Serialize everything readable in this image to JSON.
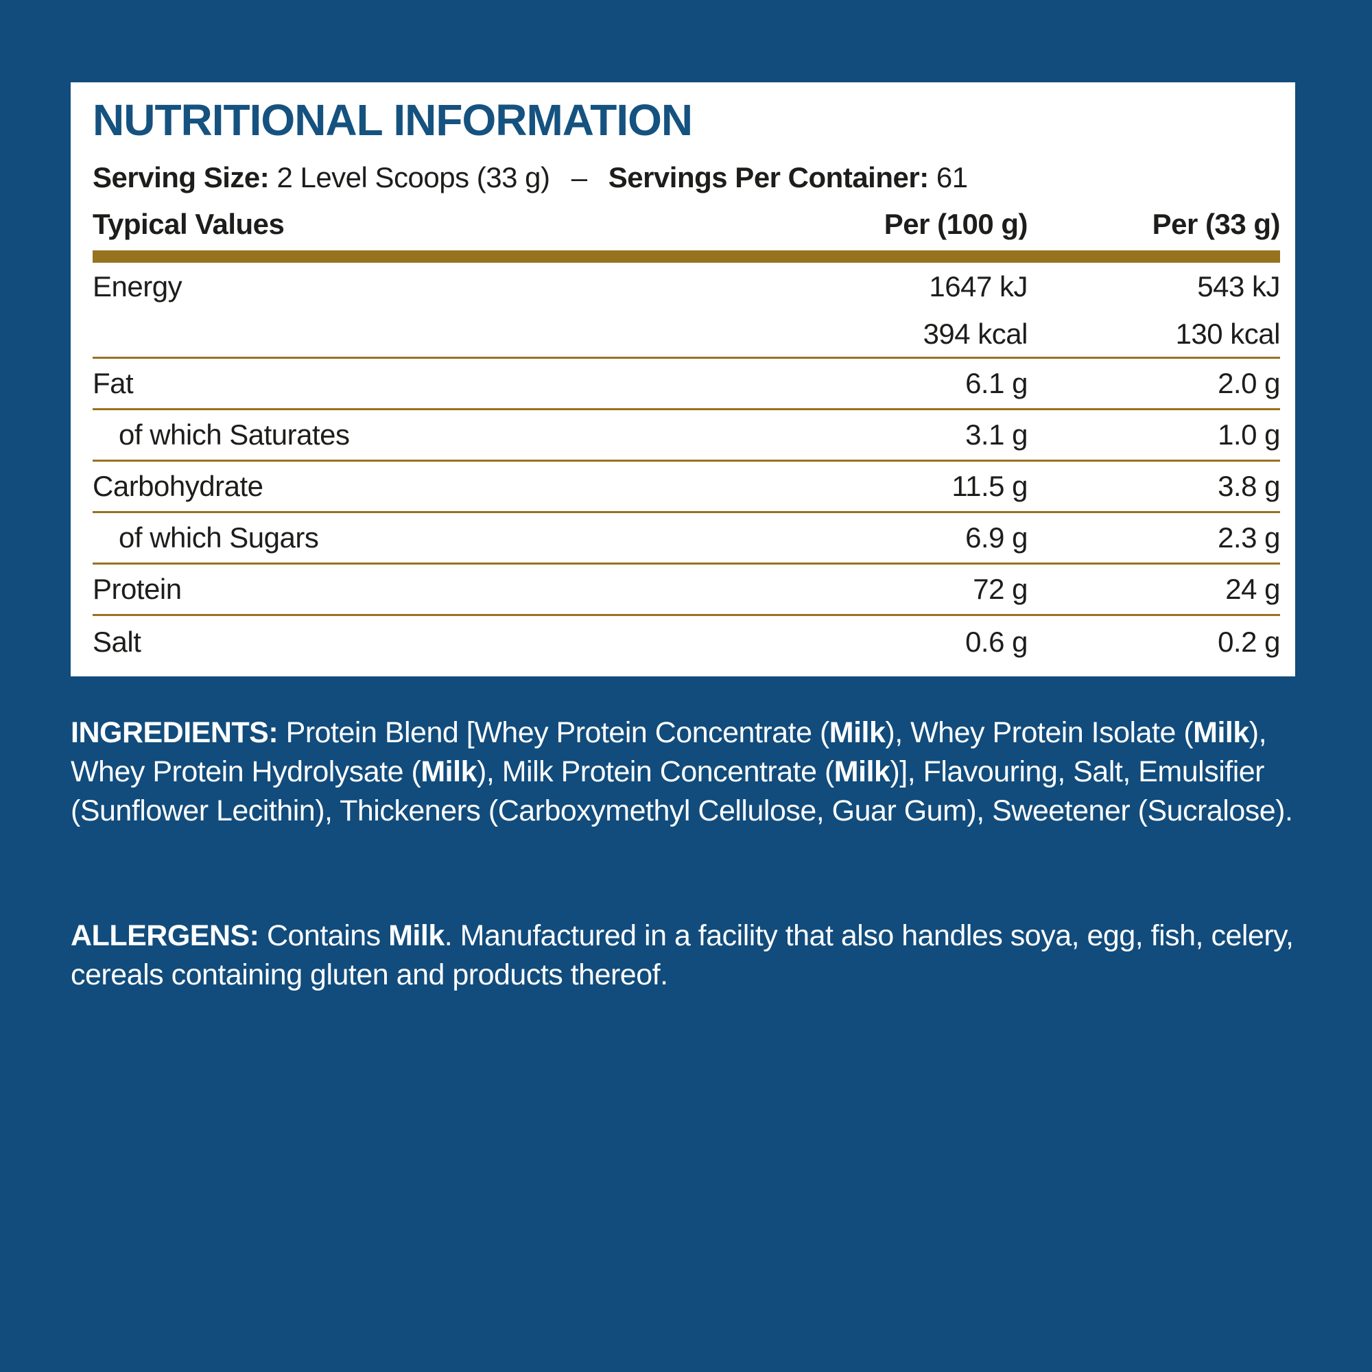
{
  "colors": {
    "navy": "#114C7C",
    "title-blue": "#15527F",
    "ink": "#1D1D1B",
    "gold": "#97721F",
    "card": "#FFFFFF",
    "white": "#FFFFFF"
  },
  "card": {
    "title": "NUTRITIONAL INFORMATION",
    "serving": {
      "label1": "Serving Size:",
      "value1": "2 Level Scoops (33 g)",
      "dash": "–",
      "label2": "Servings Per Container:",
      "value2": "61"
    },
    "table": {
      "columns": [
        "Typical Values",
        "Per (100 g)",
        "Per (33 g)"
      ],
      "rows": [
        {
          "label": "Energy",
          "per100": "1647 kJ",
          "per33": "543 kJ",
          "indent": false,
          "divider": false,
          "tight": true
        },
        {
          "label": "",
          "per100": "394 kcal",
          "per33": "130 kcal",
          "indent": false,
          "divider": true,
          "tight": true
        },
        {
          "label": "Fat",
          "per100": "6.1 g",
          "per33": "2.0 g",
          "indent": false,
          "divider": true,
          "tight": false
        },
        {
          "label": "of which Saturates",
          "per100": "3.1 g",
          "per33": "1.0 g",
          "indent": true,
          "divider": true,
          "tight": false
        },
        {
          "label": "Carbohydrate",
          "per100": "11.5 g",
          "per33": "3.8 g",
          "indent": false,
          "divider": true,
          "tight": false
        },
        {
          "label": "of which Sugars",
          "per100": "6.9 g",
          "per33": "2.3 g",
          "indent": true,
          "divider": true,
          "tight": false
        },
        {
          "label": "Protein",
          "per100": "72 g",
          "per33": "24 g",
          "indent": false,
          "divider": true,
          "tight": false
        },
        {
          "label": "Salt",
          "per100": "0.6 g",
          "per33": "0.2 g",
          "indent": false,
          "divider": false,
          "tight": false
        }
      ]
    }
  },
  "ingredients": {
    "segments": [
      {
        "t": "INGREDIENTS:",
        "b": true
      },
      {
        "t": " Protein Blend [Whey Protein Concentrate (",
        "b": false
      },
      {
        "t": "Milk",
        "b": true
      },
      {
        "t": "), Whey Protein Isolate (",
        "b": false
      },
      {
        "t": "Milk",
        "b": true
      },
      {
        "t": "), Whey Protein Hydrolysate (",
        "b": false
      },
      {
        "t": "Milk",
        "b": true
      },
      {
        "t": "), Milk Protein Concentrate (",
        "b": false
      },
      {
        "t": "Milk",
        "b": true
      },
      {
        "t": ")], Flavouring, Salt, Emulsifier (Sunflower Lecithin), Thickeners (Carboxymethyl Cellulose, Guar Gum), Sweetener (Sucralose).",
        "b": false
      }
    ]
  },
  "allergens": {
    "segments": [
      {
        "t": "ALLERGENS:",
        "b": true
      },
      {
        "t": " Contains ",
        "b": false
      },
      {
        "t": "Milk",
        "b": true
      },
      {
        "t": ". Manufactured in a facility that also handles soya, egg, fish, celery, cereals containing gluten and products thereof.",
        "b": false
      }
    ]
  }
}
